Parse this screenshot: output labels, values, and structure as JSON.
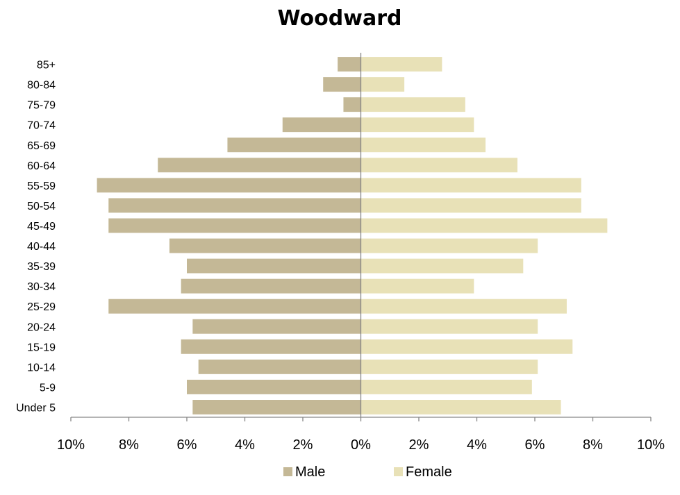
{
  "chart_data": {
    "type": "bar",
    "orientation": "horizontal",
    "title": "Woodward",
    "categories": [
      "Under 5",
      "5-9",
      "10-14",
      "15-19",
      "20-24",
      "25-29",
      "30-34",
      "35-39",
      "40-44",
      "45-49",
      "50-54",
      "55-59",
      "60-64",
      "65-69",
      "70-74",
      "75-79",
      "80-84",
      "85+"
    ],
    "series": [
      {
        "name": "Male",
        "color": "#c4b896",
        "values": [
          -5.8,
          -6.0,
          -5.6,
          -6.2,
          -5.8,
          -8.7,
          -6.2,
          -6.0,
          -6.6,
          -8.7,
          -8.7,
          -9.1,
          -7.0,
          -4.6,
          -2.7,
          -0.6,
          -1.3,
          -0.8
        ]
      },
      {
        "name": "Female",
        "color": "#e8e1b7",
        "values": [
          6.9,
          5.9,
          6.1,
          7.3,
          6.1,
          7.1,
          3.9,
          5.6,
          6.1,
          8.5,
          7.6,
          7.6,
          5.4,
          4.3,
          3.9,
          3.6,
          1.5,
          2.8
        ]
      }
    ],
    "xlim": [
      -10,
      10
    ],
    "xticks": [
      -10,
      -8,
      -6,
      -4,
      -2,
      0,
      2,
      4,
      6,
      8,
      10
    ],
    "xtick_labels": [
      "10%",
      "8%",
      "6%",
      "4%",
      "2%",
      "0%",
      "2%",
      "4%",
      "6%",
      "8%",
      "10%"
    ],
    "xlabel": "",
    "ylabel": "",
    "grid": false,
    "legend_position": "bottom"
  }
}
